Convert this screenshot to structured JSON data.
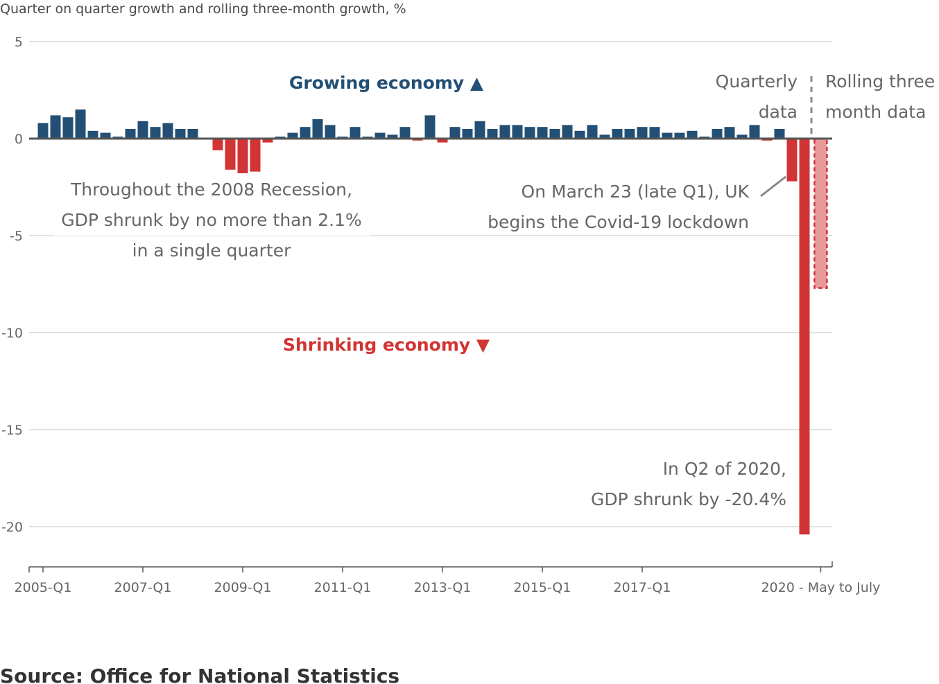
{
  "chart_data": {
    "type": "bar",
    "title": "",
    "subtitle": "Quarter on quarter growth and rolling three-month growth, %",
    "ylim": [
      -22,
      5
    ],
    "y_ticks": [
      5,
      0,
      -5,
      -10,
      -15,
      -20
    ],
    "x_tick_labels": [
      "2005-Q1",
      "2007-Q1",
      "2009-Q1",
      "2011-Q1",
      "2013-Q1",
      "2015-Q1",
      "2017-Q1",
      "2020 - May to July"
    ],
    "x_tick_quarters": [
      "2005-Q1",
      "2007-Q1",
      "2009-Q1",
      "2011-Q1",
      "2013-Q1",
      "2015-Q1",
      "2017-Q1"
    ],
    "quarters_start": "2005-Q1",
    "values": [
      0.8,
      1.2,
      1.1,
      1.5,
      0.4,
      0.3,
      0.1,
      0.5,
      0.9,
      0.6,
      0.8,
      0.5,
      0.5,
      0.0,
      -0.6,
      -1.6,
      -2.1,
      -1.7,
      -0.2,
      0.1,
      0.3,
      0.6,
      1.0,
      0.7,
      0.1,
      0.6,
      0.1,
      0.3,
      0.2,
      0.6,
      -0.1,
      1.2,
      -0.2,
      0.6,
      0.5,
      0.9,
      0.5,
      0.7,
      0.7,
      0.6,
      0.6,
      0.5,
      0.7,
      0.4,
      0.7,
      0.2,
      0.5,
      0.5,
      0.6,
      0.6,
      0.3,
      0.3,
      0.4,
      0.1,
      0.5,
      0.6,
      0.2,
      0.7,
      -0.1,
      0.5,
      -2.2,
      -20.4
    ],
    "rolling_three_month": {
      "label": "May to July",
      "value": -7.7
    },
    "colors": {
      "positive": "#234f74",
      "negative": "#d13434",
      "rolling": "#e89a9a",
      "grid": "#d9d9d9",
      "zero": "#555555"
    },
    "grid": true
  },
  "labels": {
    "growing": "Growing economy ▲",
    "shrinking": "Shrinking economy ▼",
    "quarterly_line1": "Quarterly",
    "quarterly_line2": "data",
    "rolling_line1": "Rolling three",
    "rolling_line2": "month data"
  },
  "annotations": {
    "recession_line1": "Throughout the 2008 Recession,",
    "recession_line2": "GDP shrunk by no more than 2.1%",
    "recession_line3": "in a single quarter",
    "lockdown_line1": "On March 23 (late Q1), UK",
    "lockdown_line2": "begins the Covid-19 lockdown",
    "q2_line1": "In Q2 of 2020,",
    "q2_line2": "GDP shrunk by -20.4%"
  },
  "source": "Source: Office for National Statistics"
}
